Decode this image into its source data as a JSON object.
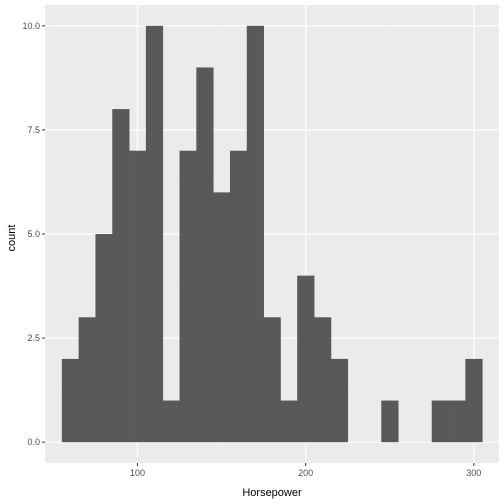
{
  "chart_data": {
    "type": "bar",
    "title": "",
    "xlabel": "Horsepower",
    "ylabel": "count",
    "xlim": [
      45,
      315
    ],
    "ylim": [
      -0.5,
      10.5
    ],
    "grid": true,
    "x_major_ticks": [
      100,
      200,
      300
    ],
    "x_minor_ticks": [
      50,
      150,
      250
    ],
    "y_major_ticks": [
      0,
      2.5,
      5,
      7.5,
      10
    ],
    "y_minor_ticks": [
      1.25,
      3.75,
      6.25,
      8.75
    ],
    "x_tick_labels": [
      "100",
      "200",
      "300"
    ],
    "y_tick_labels": [
      "0.0",
      "2.5",
      "5.0",
      "7.5",
      "10.0"
    ],
    "bin_width": 10,
    "bins": [
      {
        "x_start": 55,
        "x_end": 65,
        "count": 2
      },
      {
        "x_start": 65,
        "x_end": 75,
        "count": 3
      },
      {
        "x_start": 75,
        "x_end": 85,
        "count": 5
      },
      {
        "x_start": 85,
        "x_end": 95,
        "count": 8
      },
      {
        "x_start": 95,
        "x_end": 105,
        "count": 7
      },
      {
        "x_start": 105,
        "x_end": 115,
        "count": 10
      },
      {
        "x_start": 115,
        "x_end": 125,
        "count": 1
      },
      {
        "x_start": 125,
        "x_end": 135,
        "count": 7
      },
      {
        "x_start": 135,
        "x_end": 145,
        "count": 9
      },
      {
        "x_start": 145,
        "x_end": 155,
        "count": 6
      },
      {
        "x_start": 155,
        "x_end": 165,
        "count": 7
      },
      {
        "x_start": 165,
        "x_end": 175,
        "count": 10
      },
      {
        "x_start": 175,
        "x_end": 185,
        "count": 3
      },
      {
        "x_start": 185,
        "x_end": 195,
        "count": 1
      },
      {
        "x_start": 195,
        "x_end": 205,
        "count": 4
      },
      {
        "x_start": 205,
        "x_end": 215,
        "count": 3
      },
      {
        "x_start": 215,
        "x_end": 225,
        "count": 2
      },
      {
        "x_start": 245,
        "x_end": 255,
        "count": 1
      },
      {
        "x_start": 275,
        "x_end": 285,
        "count": 1
      },
      {
        "x_start": 285,
        "x_end": 295,
        "count": 1
      },
      {
        "x_start": 295,
        "x_end": 305,
        "count": 2
      }
    ],
    "colors": {
      "panel_background": "#ebebeb",
      "grid_major": "#ffffff",
      "grid_minor": "#f5f5f5",
      "bar_fill": "#595959",
      "tick_mark": "#333333",
      "tick_text": "#4d4d4d"
    }
  }
}
